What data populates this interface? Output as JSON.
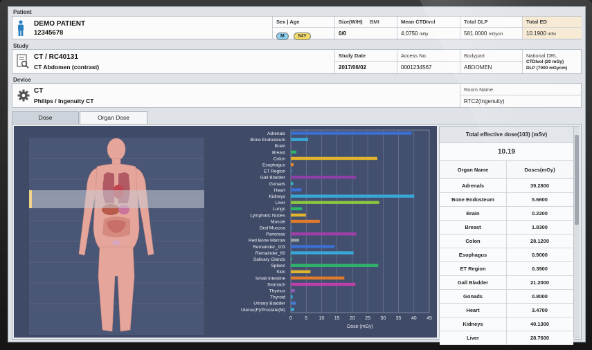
{
  "patient": {
    "section": "Patient",
    "name": "DEMO PATIENT",
    "id": "12345678",
    "sex_age_label": "Sex | Age",
    "sex": "M",
    "age": "54Y",
    "size_label": "Size(W/H)",
    "bmi_label": "BMI",
    "size_value": "0/0",
    "ctdi_label": "Mean CTDIvol",
    "ctdi_value": "4.0750",
    "ctdi_unit": "mGy",
    "dlp_label": "Total DLP",
    "dlp_value": "581.0000",
    "dlp_unit": "mGycm",
    "ed_label": "Total ED",
    "ed_value": "10.1900",
    "ed_unit": "mSv"
  },
  "study": {
    "section": "Study",
    "title": "CT / RC40131",
    "desc": "CT Abdomen (contrast)",
    "date_label": "Study Date",
    "date_value": "2017/06/02",
    "access_label": "Access No.",
    "access_value": "0001234567",
    "bodypart_label": "Bodypart",
    "bodypart_value": "ABDOMEN",
    "drl_label": "National DRL",
    "drl_line1": "CTDIvol (20 mGy)",
    "drl_line2": "DLP (7000 mGycm)"
  },
  "device": {
    "section": "Device",
    "type": "CT",
    "model": "Philips / Ingenuity CT",
    "room_label": "Room Name",
    "room_value": "RTC2(Ingenuity)"
  },
  "tabs": [
    {
      "label": "Dose",
      "active": false
    },
    {
      "label": "Organ Dose",
      "active": true
    }
  ],
  "colors": {
    "chart_bg": "#3f4a67",
    "accent": "#4a90d9"
  },
  "chart_data": {
    "type": "bar",
    "orientation": "horizontal",
    "xlabel": "Dose (mGy)",
    "xlim": [
      0,
      45
    ],
    "xticks": [
      0,
      5,
      10,
      15,
      20,
      25,
      30,
      35,
      40,
      45
    ],
    "grid": true,
    "categories": [
      "Adrenals",
      "Bone Endosteum",
      "Brain",
      "Breast",
      "Colon",
      "Esophagus",
      "ET Region",
      "Gall Bladder",
      "Gonads",
      "Heart",
      "Kidneys",
      "Liver",
      "Lungs",
      "Lymphatic Nodes",
      "Muscle",
      "Oral Mucosa",
      "Pancreas",
      "Red Bone Marrow",
      "Remainder_103",
      "Remainder_60",
      "Salivary Glands",
      "Spleen",
      "Skin",
      "Small Intestine",
      "Stomach",
      "Thymus",
      "Thyroid",
      "Urinary Bladder",
      "Uterus(F)/Prostate(M)"
    ],
    "values": [
      39.28,
      5.66,
      0.22,
      1.83,
      28.12,
      0.9,
      0.39,
      21.2,
      0.8,
      3.47,
      40.13,
      28.76,
      3.7,
      4.9,
      9.4,
      0.3,
      21.3,
      2.7,
      14.3,
      20.4,
      0.4,
      28.4,
      6.4,
      17.4,
      21.0,
      1.3,
      0.6,
      1.7,
      1.1
    ],
    "colors": [
      "#3b6fd1",
      "#38a8d8",
      "#8e5bb5",
      "#2fb36a",
      "#e0b52d",
      "#e08a2d",
      "#4a7bd1",
      "#8e3fa8",
      "#2fb3c8",
      "#3b6fd1",
      "#38a8d8",
      "#8cc63f",
      "#2fb36a",
      "#e0b52d",
      "#e07b2d",
      "#4a7bd1",
      "#a03fa8",
      "#9aa0a8",
      "#3b6fd1",
      "#38a8d8",
      "#2fb36a",
      "#2fb36a",
      "#e0b52d",
      "#e07b2d",
      "#c03fa8",
      "#8e5bb5",
      "#38a8d8",
      "#4a7bd1",
      "#38a8d8"
    ]
  },
  "organ_table": {
    "title": "Total effective dose(103) (mSv)",
    "total": "10.19",
    "col1": "Organ Name",
    "col2": "Doses(mGy)",
    "rows": [
      {
        "organ": "Adrenals",
        "dose": "39.2800"
      },
      {
        "organ": "Bone Endosteum",
        "dose": "5.6600"
      },
      {
        "organ": "Brain",
        "dose": "0.2200"
      },
      {
        "organ": "Breast",
        "dose": "1.8300"
      },
      {
        "organ": "Colon",
        "dose": "28.1200"
      },
      {
        "organ": "Esophagus",
        "dose": "0.9000"
      },
      {
        "organ": "ET Region",
        "dose": "0.3900"
      },
      {
        "organ": "Gall Bladder",
        "dose": "21.2000"
      },
      {
        "organ": "Gonads",
        "dose": "0.8000"
      },
      {
        "organ": "Heart",
        "dose": "3.4700"
      },
      {
        "organ": "Kidneys",
        "dose": "40.1300"
      },
      {
        "organ": "Liver",
        "dose": "28.7600"
      }
    ]
  }
}
